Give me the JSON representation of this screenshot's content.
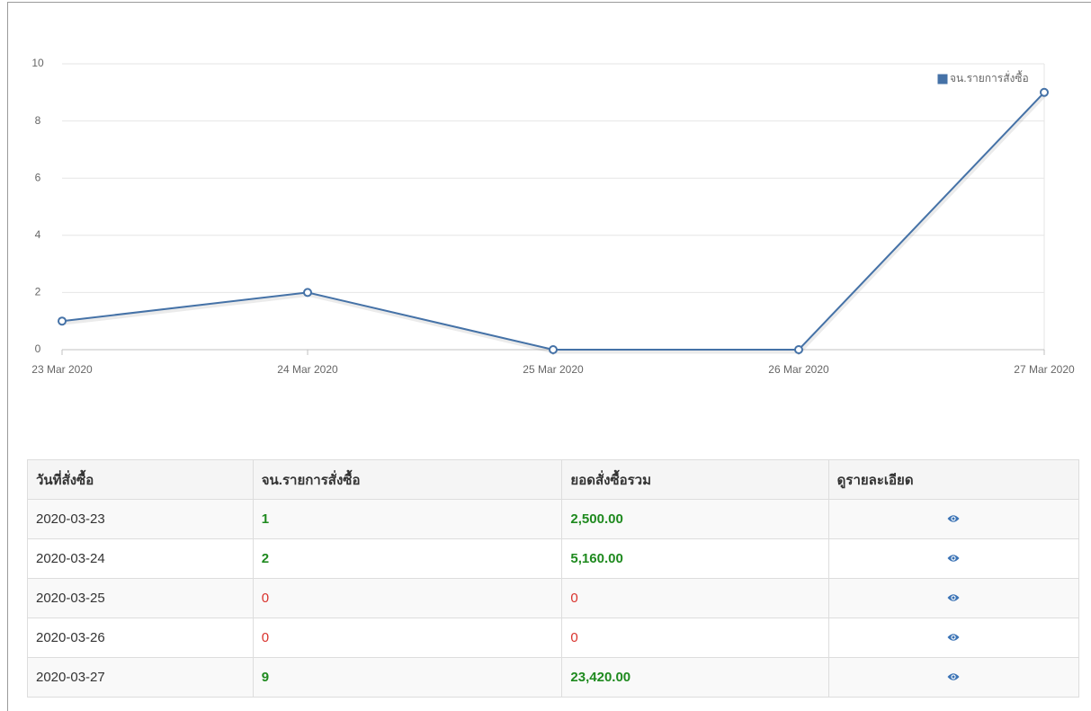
{
  "chart_data": {
    "type": "line",
    "categories": [
      "23 Mar 2020",
      "24 Mar 2020",
      "25 Mar 2020",
      "26 Mar 2020",
      "27 Mar 2020"
    ],
    "series": [
      {
        "name": "จน.รายการสั่งซื้อ",
        "color": "#4572a7",
        "values": [
          1,
          2,
          0,
          0,
          9
        ]
      }
    ],
    "ylim": [
      0,
      10
    ],
    "yticks": [
      0,
      2,
      4,
      6,
      8,
      10
    ],
    "grid": true,
    "legend": "top-right"
  },
  "table": {
    "headers": [
      "วันที่สั่งซื้อ",
      "จน.รายการสั่งซื้อ",
      "ยอดสั่งซื้อรวม",
      "ดูรายละเอียด"
    ],
    "rows": [
      [
        "2020-03-23",
        1,
        "2,500.00"
      ],
      [
        "2020-03-24",
        2,
        "5,160.00"
      ],
      [
        "2020-03-25",
        0,
        "0"
      ],
      [
        "2020-03-26",
        0,
        "0"
      ],
      [
        "2020-03-27",
        9,
        "23,420.00"
      ]
    ]
  }
}
